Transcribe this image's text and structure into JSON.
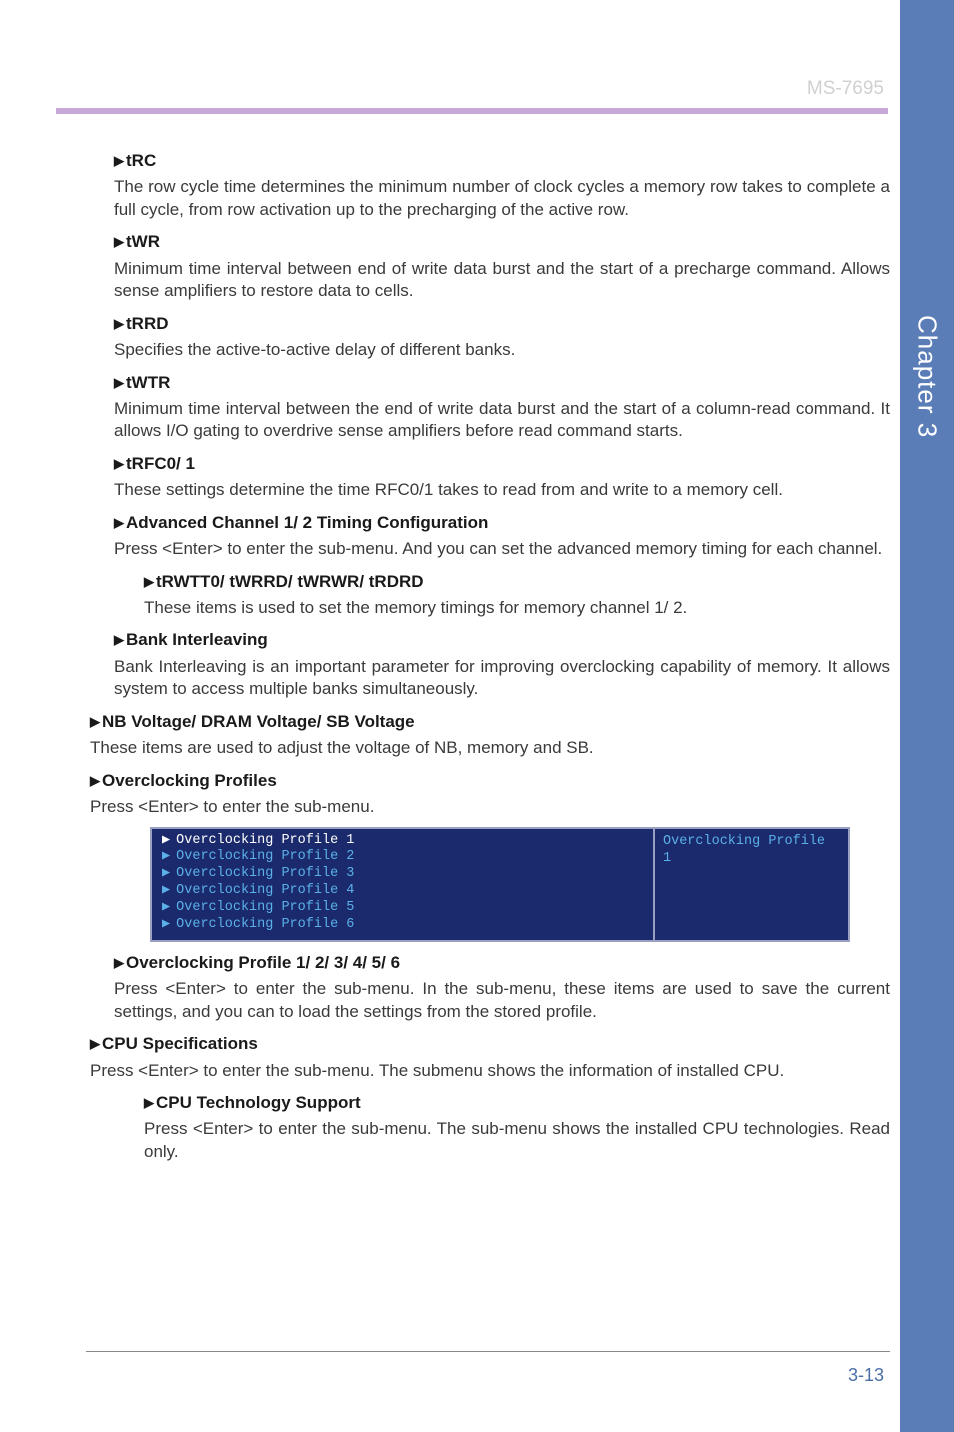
{
  "header": {
    "model": "MS-7695"
  },
  "sidetab": {
    "label": "Chapter 3"
  },
  "footer": {
    "pagenum": "3-13"
  },
  "sections": [
    {
      "level": 1,
      "title": "tRC",
      "body": "The row cycle time determines the minimum number of clock cycles a memory row takes to complete a full cycle, from row activation up to the precharging of the active row."
    },
    {
      "level": 1,
      "title": "tWR",
      "body": "Minimum time interval between end of write data burst and the start of a precharge command. Allows sense amplifiers to restore data to cells."
    },
    {
      "level": 1,
      "title": "tRRD",
      "body": "Specifies the active-to-active delay of different banks."
    },
    {
      "level": 1,
      "title": "tWTR",
      "body": "Minimum time interval between the end of write data burst and the start of a column-read command. It allows I/O gating to overdrive sense amplifiers before read command starts."
    },
    {
      "level": 1,
      "title": "tRFC0/ 1",
      "body": "These settings determine the time RFC0/1 takes to read from and write to a memory cell."
    },
    {
      "level": 1,
      "title": "Advanced Channel 1/ 2 Timing Configuration",
      "body": "Press <Enter> to enter the sub-menu. And you can set the advanced memory timing for each channel."
    },
    {
      "level": 2,
      "title": "tRWTT0/ tWRRD/ tWRWR/ tRDRD",
      "body": "These items is used to set the memory timings for memory channel 1/ 2."
    },
    {
      "level": 1,
      "title": "Bank Interleaving",
      "body": "Bank Interleaving is an important parameter for improving overclocking capability of memory. It allows system to access multiple banks simultaneously."
    },
    {
      "level": 0,
      "title": "NB Voltage/ DRAM Voltage/ SB Voltage",
      "body": "These items are used to adjust the voltage of NB, memory and SB."
    },
    {
      "level": 0,
      "title": "Overclocking Profiles",
      "body": "Press <Enter> to enter the sub-menu."
    }
  ],
  "bios": {
    "bg_color": "#1a2a6c",
    "border_color": "#9aa0c0",
    "text_color": "#5bb0e8",
    "highlight_color": "#ffffff",
    "left_items": [
      "Overclocking Profile 1",
      "Overclocking Profile 2",
      "Overclocking Profile 3",
      "Overclocking Profile 4",
      "Overclocking Profile 5",
      "Overclocking Profile 6"
    ],
    "right_text": "Overclocking Profile 1"
  },
  "sections2": [
    {
      "level": 1,
      "title": "Overclocking Profile 1/ 2/ 3/ 4/ 5/ 6",
      "body": "Press <Enter> to enter the sub-menu. In the sub-menu, these items are used to save the current settings, and you can to load the settings from the stored profile."
    },
    {
      "level": 0,
      "title": "CPU Specifications",
      "body": "Press <Enter> to enter the sub-menu. The submenu shows the information of installed CPU."
    },
    {
      "level": 2,
      "title": "CPU Technology Support",
      "body": "Press <Enter> to enter the sub-menu. The sub-menu shows the installed CPU technologies. Read only."
    }
  ]
}
